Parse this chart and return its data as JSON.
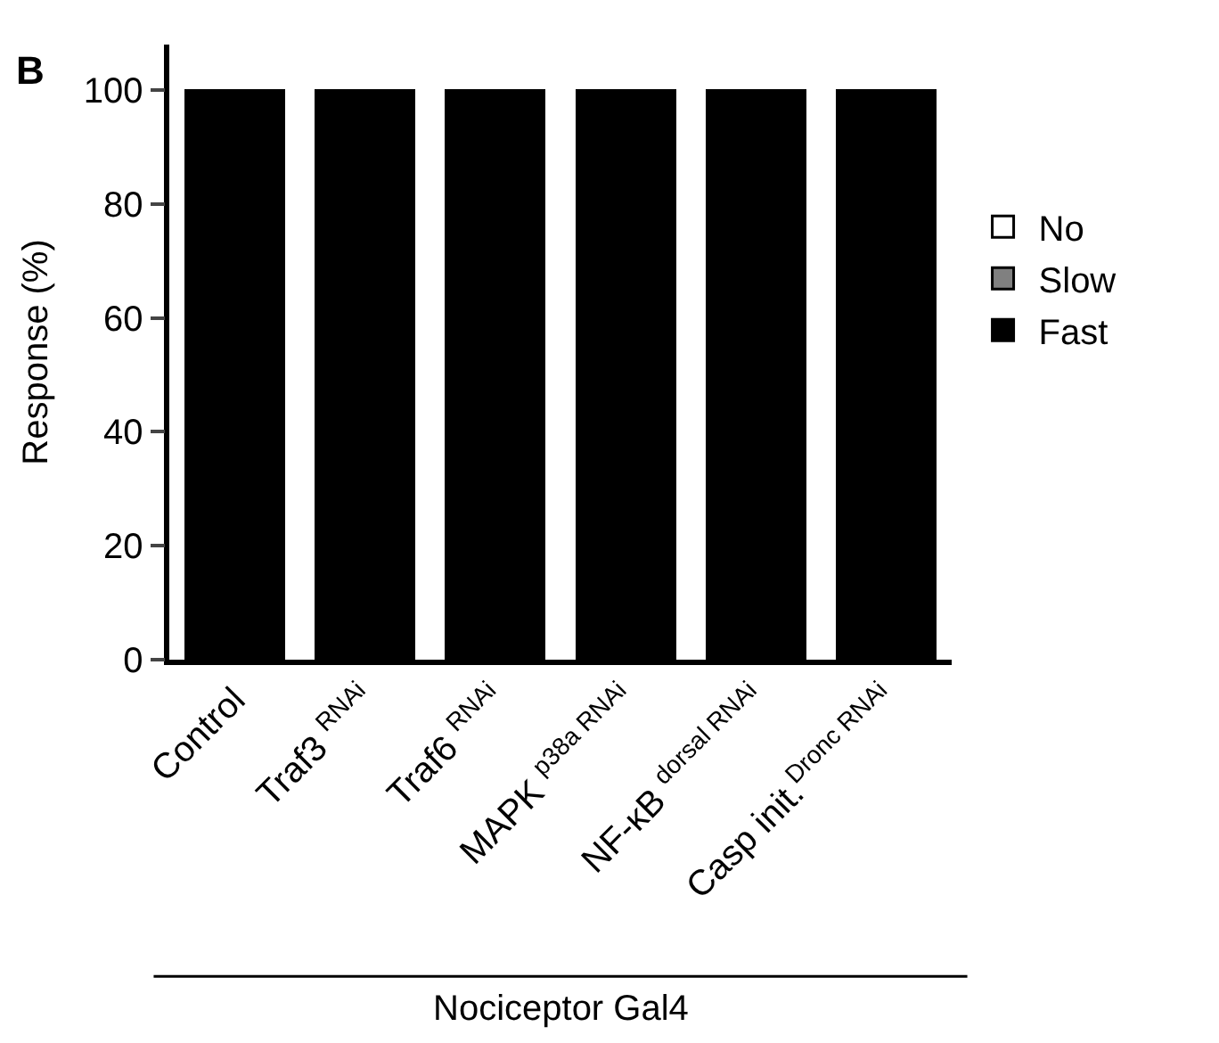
{
  "chart_data": {
    "type": "bar",
    "stacked": true,
    "ylabel": "Response (%)",
    "categories": [
      "Control",
      "Traf3 $^{RNAi}$",
      "Traf6 $^{RNAi}$",
      "MAPK $^{p38a RNAi}$",
      "NF-κB $^{dorsal RNAi}$",
      "Casp init.$^{Dronc RNAi}$"
    ],
    "series": [
      {
        "name": "Fast",
        "color": "#000000",
        "values": [
          100,
          100,
          100,
          100,
          100,
          100
        ]
      },
      {
        "name": "Slow",
        "color": "#808080",
        "values": [
          0,
          0,
          0,
          0,
          0,
          0
        ]
      },
      {
        "name": "No",
        "color": "#ffffff",
        "values": [
          0,
          0,
          0,
          0,
          0,
          0
        ]
      }
    ],
    "ylim": [
      0,
      108
    ],
    "yticks": [
      0,
      20,
      40,
      60,
      80,
      100
    ],
    "legend": "right",
    "annotations": [
      "B",
      "Nociceptor Gal4"
    ]
  }
}
